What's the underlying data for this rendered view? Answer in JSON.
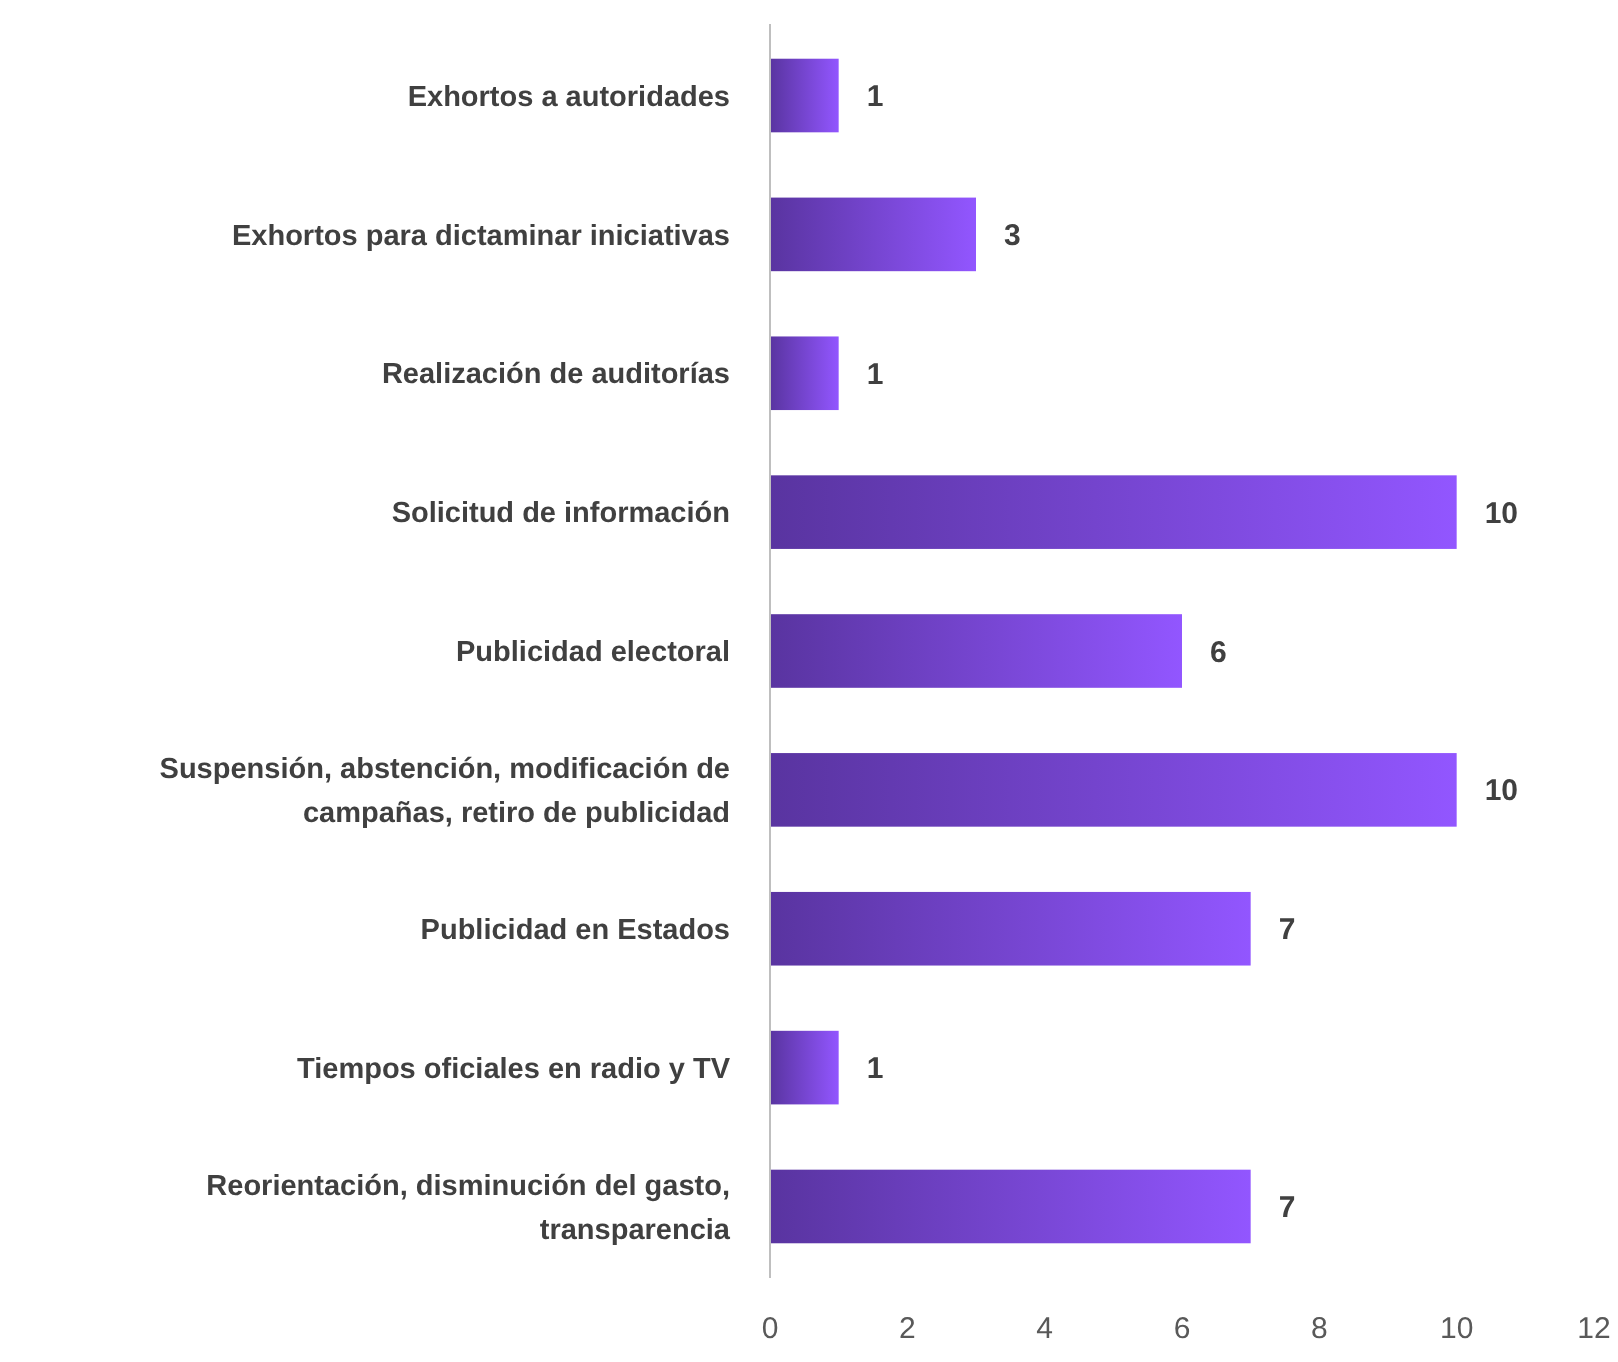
{
  "chart_data": {
    "type": "bar",
    "orientation": "horizontal",
    "categories": [
      "Exhortos a autoridades",
      "Exhortos para dictaminar iniciativas",
      "Realización de auditorías",
      "Solicitud de información",
      "Publicidad electoral",
      "Suspensión, abstención, modificación de campañas, retiro de publicidad",
      "Publicidad en Estados",
      "Tiempos oficiales en radio y TV",
      "Reorientación, disminución del gasto, transparencia"
    ],
    "values": [
      1,
      3,
      1,
      10,
      6,
      10,
      7,
      1,
      7
    ],
    "color": "#7a48dc",
    "xlim": [
      0,
      12
    ],
    "xticks": [
      0,
      2,
      4,
      6,
      8,
      10,
      12
    ],
    "data_labels": true
  }
}
